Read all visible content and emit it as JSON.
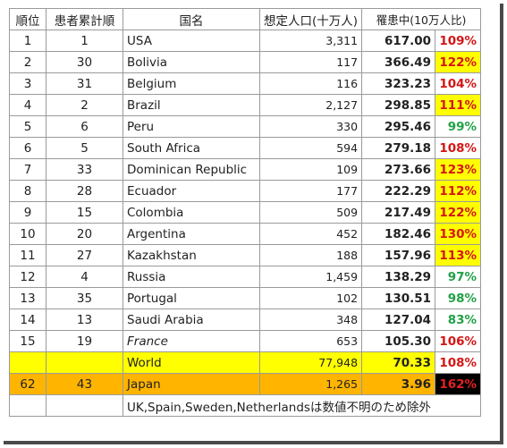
{
  "header": {
    "rank": "順位",
    "cumulative_rank": "患者累計順",
    "country": "国名",
    "population": "想定人口(十万人)",
    "rate": "罹患中(10万人比)"
  },
  "rows": [
    {
      "rank": "1",
      "cumulative": "1",
      "country": "USA",
      "population": "3,311",
      "rate": "617.00",
      "pct": "109%",
      "pct_color": "red",
      "highlight": false,
      "italic": false
    },
    {
      "rank": "2",
      "cumulative": "30",
      "country": "Bolivia",
      "population": "117",
      "rate": "366.49",
      "pct": "122%",
      "pct_color": "red",
      "highlight": true,
      "italic": false
    },
    {
      "rank": "3",
      "cumulative": "31",
      "country": "Belgium",
      "population": "116",
      "rate": "323.23",
      "pct": "104%",
      "pct_color": "red",
      "highlight": false,
      "italic": false
    },
    {
      "rank": "4",
      "cumulative": "2",
      "country": "Brazil",
      "population": "2,127",
      "rate": "298.85",
      "pct": "111%",
      "pct_color": "red",
      "highlight": true,
      "italic": false
    },
    {
      "rank": "5",
      "cumulative": "6",
      "country": "Peru",
      "population": "330",
      "rate": "295.46",
      "pct": "99%",
      "pct_color": "green",
      "highlight": false,
      "italic": false
    },
    {
      "rank": "6",
      "cumulative": "5",
      "country": "South Africa",
      "population": "594",
      "rate": "279.18",
      "pct": "108%",
      "pct_color": "red",
      "highlight": false,
      "italic": false
    },
    {
      "rank": "7",
      "cumulative": "33",
      "country": "Dominican Republic",
      "population": "109",
      "rate": "273.66",
      "pct": "123%",
      "pct_color": "red",
      "highlight": true,
      "italic": false
    },
    {
      "rank": "8",
      "cumulative": "28",
      "country": "Ecuador",
      "population": "177",
      "rate": "222.29",
      "pct": "112%",
      "pct_color": "red",
      "highlight": true,
      "italic": false
    },
    {
      "rank": "9",
      "cumulative": "15",
      "country": "Colombia",
      "population": "509",
      "rate": "217.49",
      "pct": "122%",
      "pct_color": "red",
      "highlight": true,
      "italic": false
    },
    {
      "rank": "10",
      "cumulative": "20",
      "country": "Argentina",
      "population": "452",
      "rate": "182.46",
      "pct": "130%",
      "pct_color": "red",
      "highlight": true,
      "italic": false
    },
    {
      "rank": "11",
      "cumulative": "27",
      "country": "Kazakhstan",
      "population": "188",
      "rate": "157.96",
      "pct": "113%",
      "pct_color": "red",
      "highlight": true,
      "italic": false
    },
    {
      "rank": "12",
      "cumulative": "4",
      "country": "Russia",
      "population": "1,459",
      "rate": "138.29",
      "pct": "97%",
      "pct_color": "green",
      "highlight": false,
      "italic": false
    },
    {
      "rank": "13",
      "cumulative": "35",
      "country": "Portugal",
      "population": "102",
      "rate": "130.51",
      "pct": "98%",
      "pct_color": "green",
      "highlight": false,
      "italic": false
    },
    {
      "rank": "14",
      "cumulative": "13",
      "country": "Saudi Arabia",
      "population": "348",
      "rate": "127.04",
      "pct": "83%",
      "pct_color": "green",
      "highlight": false,
      "italic": false
    },
    {
      "rank": "15",
      "cumulative": "19",
      "country": "France",
      "population": "653",
      "rate": "105.30",
      "pct": "106%",
      "pct_color": "red",
      "highlight": false,
      "italic": true
    }
  ],
  "world": {
    "rank": "",
    "cumulative": "",
    "country": "World",
    "population": "77,948",
    "rate": "70.33",
    "pct": "108%"
  },
  "japan": {
    "rank": "62",
    "cumulative": "43",
    "country": "Japan",
    "population": "1,265",
    "rate": "3.96",
    "pct": "162%"
  },
  "note": "UK,Spain,Sweden,Netherlandsは数値不明のため除外",
  "colors": {
    "red": "#d51616",
    "green": "#21a146",
    "yellow": "#ffff00",
    "orange": "#ffb400",
    "black": "#000000"
  }
}
